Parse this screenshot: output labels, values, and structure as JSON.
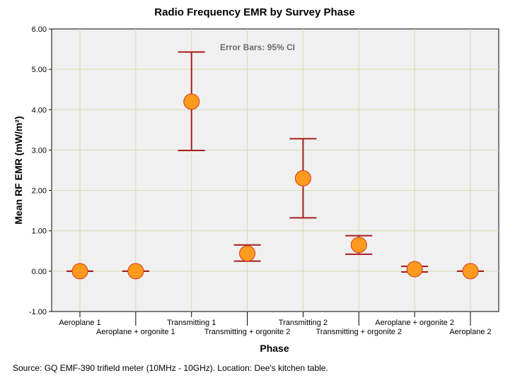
{
  "chart_data": {
    "type": "scatter",
    "subtype": "mean-with-error-bars",
    "title": "Radio Frequency EMR by Survey Phase",
    "xlabel": "Phase",
    "ylabel": "Mean RF EMR (mW/m²)",
    "annotation": "Error Bars: 95% CI",
    "ylim": [
      -1.0,
      6.0
    ],
    "yticks": [
      "-1.00",
      "0.00",
      "1.00",
      "2.00",
      "3.00",
      "4.00",
      "5.00",
      "6.00"
    ],
    "yticks_values": [
      -1,
      0,
      1,
      2,
      3,
      4,
      5,
      6
    ],
    "categories": [
      "Aeroplane 1",
      "Aeroplane + orgonite 1",
      "Transmitting 1",
      "Transmitting + orgonite 2",
      "Transmitting 2",
      "Transmitting + orgonite 2",
      "Aeroplane + orgonite 2",
      "Aeroplane 2"
    ],
    "means": [
      0.0,
      0.0,
      4.2,
      0.44,
      2.3,
      0.65,
      0.05,
      0.0
    ],
    "ci_lower": [
      0.0,
      0.0,
      2.99,
      0.25,
      1.32,
      0.42,
      -0.02,
      0.0
    ],
    "ci_upper": [
      0.0,
      0.0,
      5.43,
      0.65,
      3.28,
      0.88,
      0.12,
      0.0
    ],
    "grid": true,
    "colors": {
      "plot_bg": "#f0f0f0",
      "grid": "#d9d9b0",
      "marker_fill": "#ff9a1f",
      "marker_edge": "#d23a1a",
      "error_bar": "#a81c1c"
    }
  },
  "source_note": "Source: GQ EMF-390 trifield meter (10MHz - 10GHz). Location: Dee's kitchen table."
}
